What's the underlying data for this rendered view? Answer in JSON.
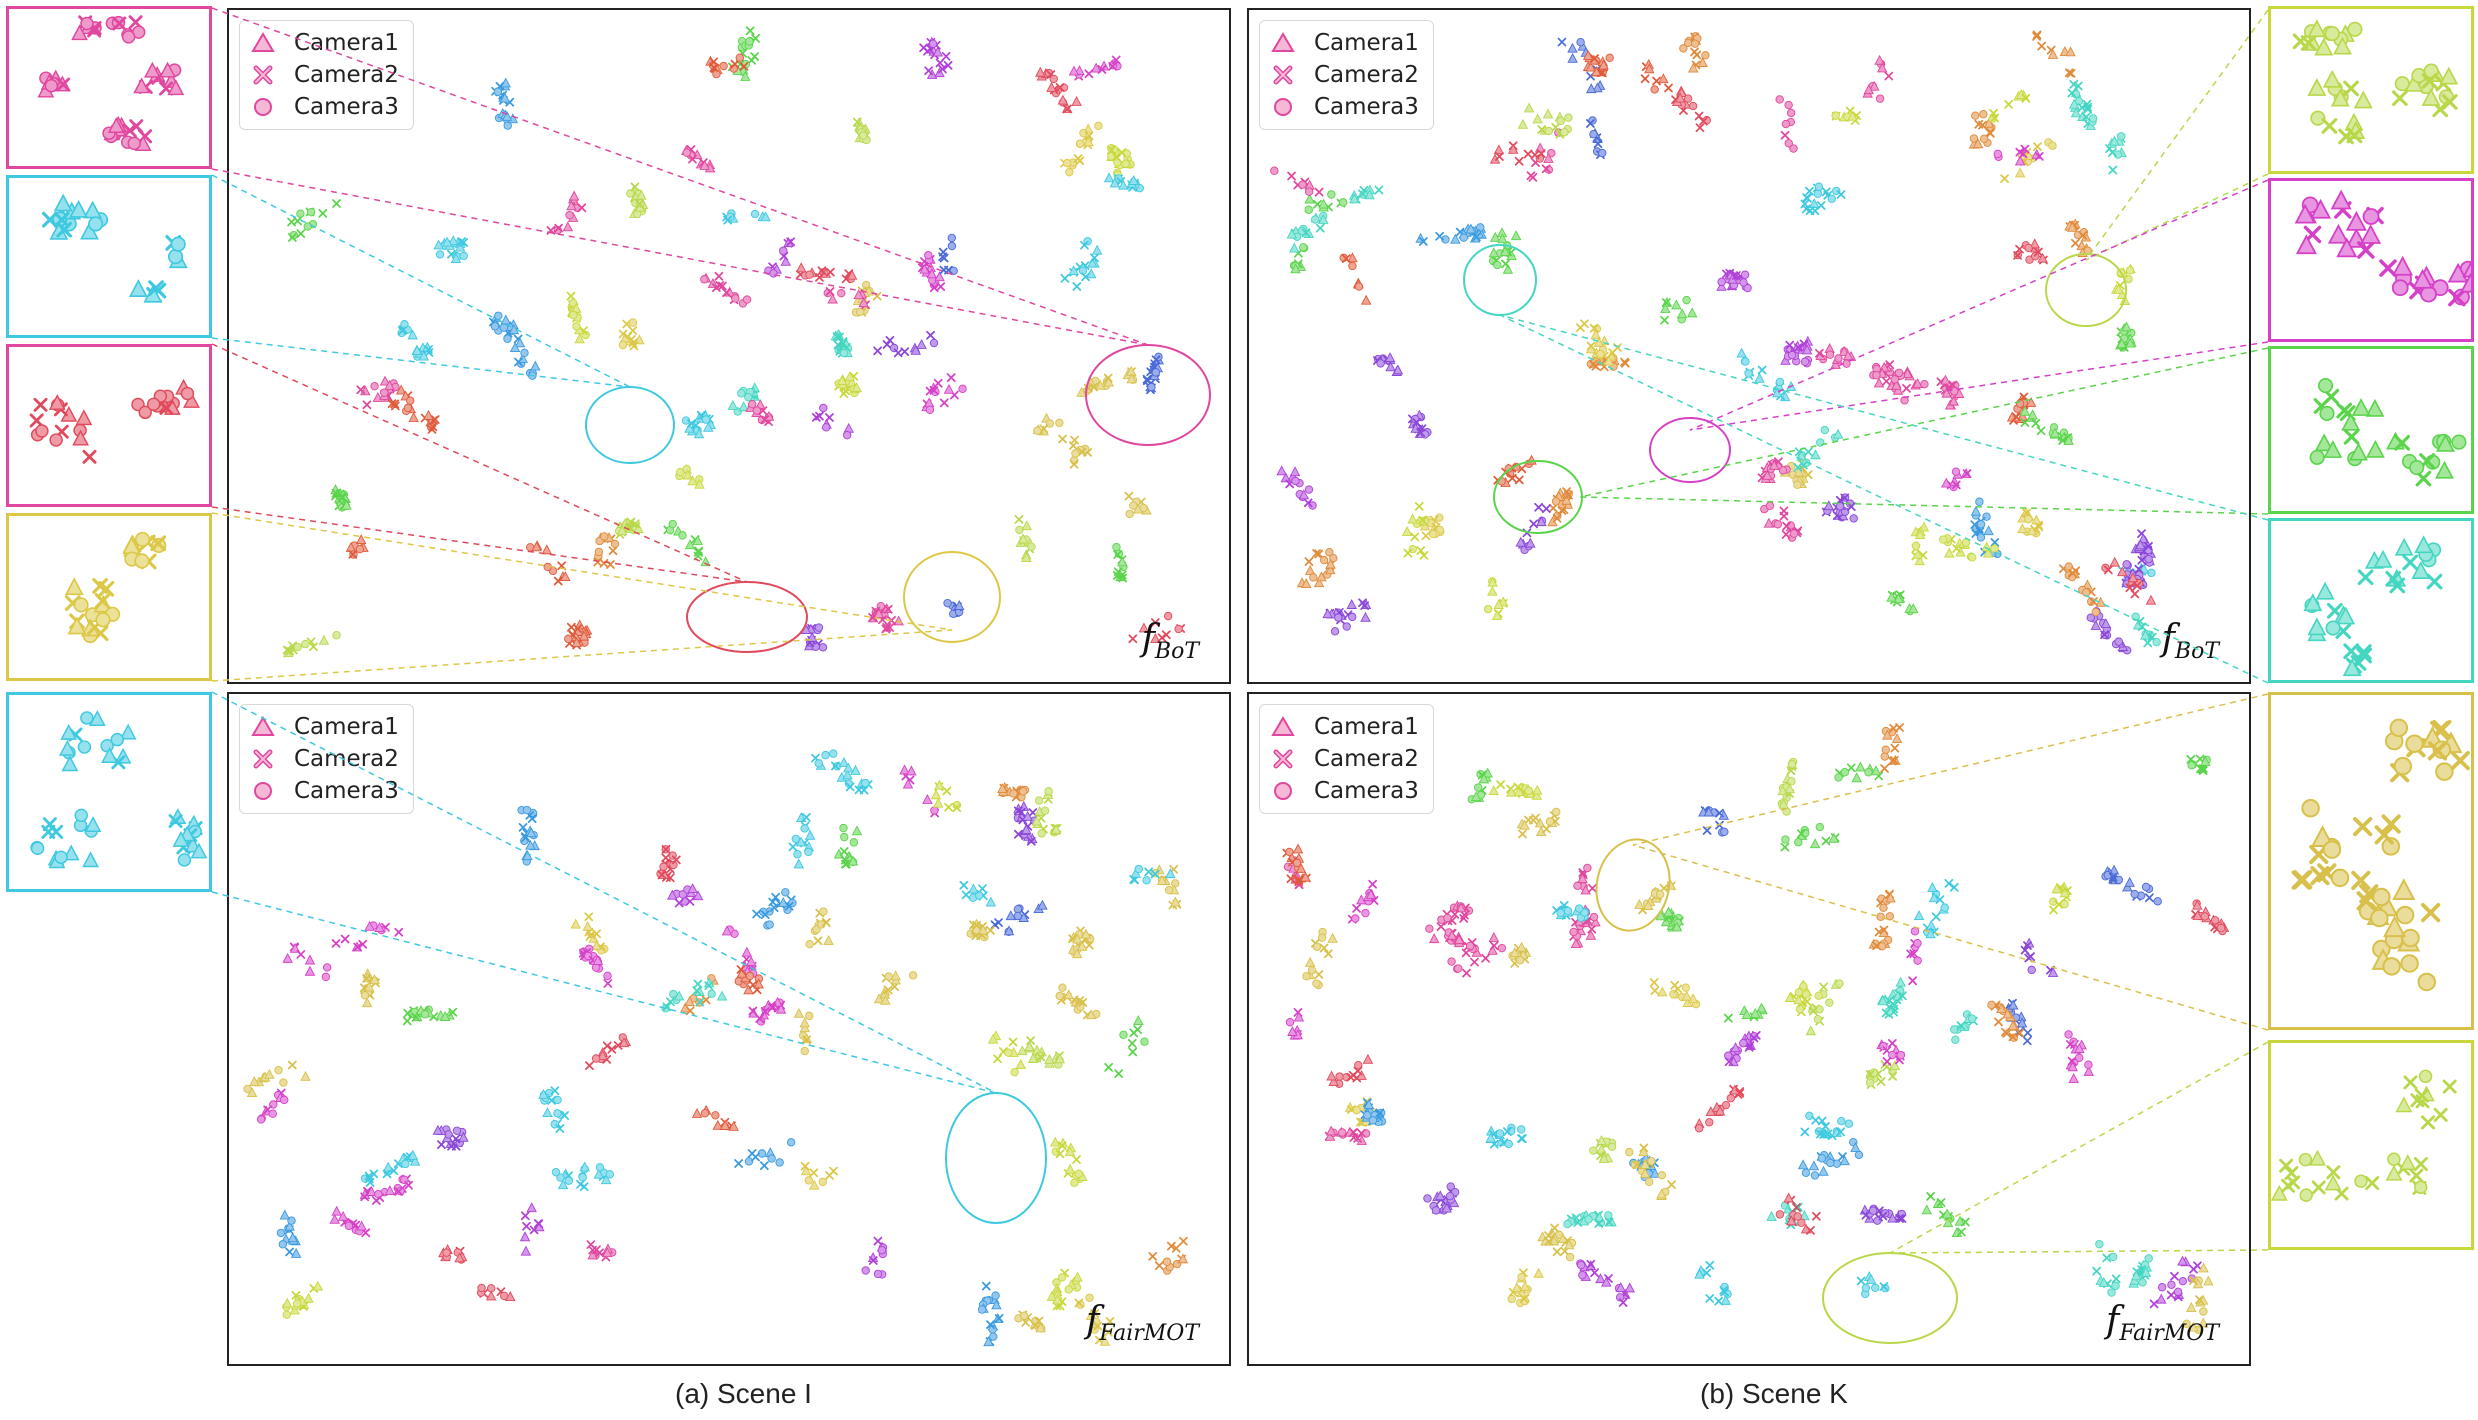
{
  "legend": [
    "Camera1",
    "Camera2",
    "Camera3"
  ],
  "feature_labels": {
    "bot": {
      "base": "f",
      "sub": "BoT"
    },
    "fairmot": {
      "base": "f",
      "sub": "FairMOT"
    }
  },
  "captions": {
    "scene_i": "(a) Scene I",
    "scene_k": "(b) Scene K"
  },
  "marker_meaning": {
    "triangle": "Camera1",
    "cross": "Camera2",
    "circle": "Camera3"
  },
  "colors": {
    "pink": "#e0479e",
    "cyan": "#3ec9e0",
    "red": "#e04a5c",
    "yellow": "#dcc846",
    "teal": "#45d6c2",
    "magenta": "#d640c8",
    "green": "#5ad44a",
    "lime": "#b8d84a",
    "gold": "#d8c04a",
    "blue": "#4a6ad8",
    "purple": "#8a46d8",
    "orange": "#e08a3a",
    "sky": "#3a9ae0",
    "olive": "#c8d83a",
    "violet": "#b040d8",
    "coral": "#e05a3a"
  },
  "chart_data": [
    {
      "id": "scene-i-bot",
      "type": "scatter",
      "scene": "Scene I",
      "feature": "f_BoT",
      "legend": [
        "Camera1",
        "Camera2",
        "Camera3"
      ],
      "axes_visible": false,
      "highlighted_clusters": [
        "pink",
        "cyan",
        "red",
        "yellow"
      ]
    },
    {
      "id": "scene-i-fairmot",
      "type": "scatter",
      "scene": "Scene I",
      "feature": "f_FairMOT",
      "legend": [
        "Camera1",
        "Camera2",
        "Camera3"
      ],
      "axes_visible": false,
      "highlighted_clusters": [
        "cyan"
      ]
    },
    {
      "id": "scene-k-bot",
      "type": "scatter",
      "scene": "Scene K",
      "feature": "f_BoT",
      "legend": [
        "Camera1",
        "Camera2",
        "Camera3"
      ],
      "axes_visible": false,
      "highlighted_clusters": [
        "lime",
        "magenta",
        "green",
        "teal"
      ]
    },
    {
      "id": "scene-k-fairmot",
      "type": "scatter",
      "scene": "Scene K",
      "feature": "f_FairMOT",
      "legend": [
        "Camera1",
        "Camera2",
        "Camera3"
      ],
      "axes_visible": false,
      "highlighted_clusters": [
        "gold",
        "lime"
      ]
    }
  ]
}
